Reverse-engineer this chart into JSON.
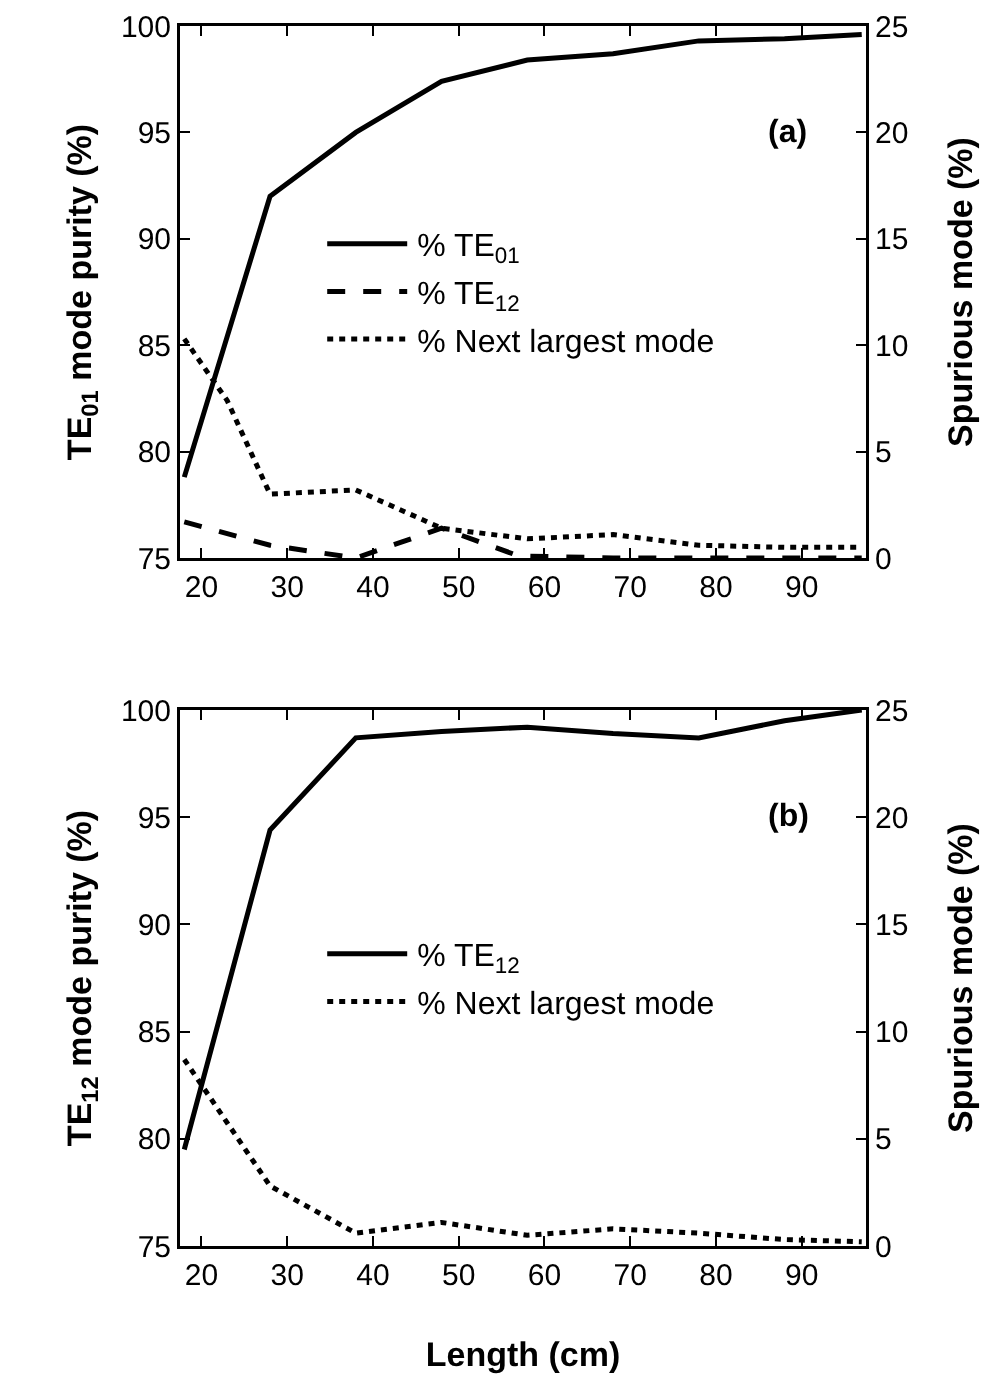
{
  "chart_data": [
    {
      "type": "line",
      "ylabel": "TE$_{01}$ mode purity (%)",
      "y2label": "Spurious mode (%)",
      "annotations": [
        "(a)"
      ],
      "legend": "center",
      "grid": false,
      "xlim": [
        17.5,
        97.5
      ],
      "xticks": [
        20,
        30,
        40,
        50,
        60,
        70,
        80,
        90
      ],
      "ylim": [
        75,
        100
      ],
      "yticks": [
        75,
        80,
        85,
        90,
        95,
        100
      ],
      "y2lim": [
        0,
        25
      ],
      "y2ticks": [
        0,
        5,
        10,
        15,
        20,
        25
      ],
      "series": [
        {
          "name": "% TE$_{01}$",
          "color": "#000000",
          "line_style": "solid",
          "x": [
            18,
            28,
            38,
            48,
            58,
            68,
            78,
            88,
            97
          ],
          "values": [
            78.8,
            92,
            95,
            97.4,
            98.4,
            98.7,
            99.3,
            99.4,
            99.6
          ]
        },
        {
          "name": "% TE$_{12}$",
          "color": "#000000",
          "line_style": "dashed",
          "axis": "y2",
          "x": [
            18,
            28,
            38,
            48,
            57,
            68,
            78,
            88,
            97
          ],
          "values": [
            1.7,
            0.6,
            0,
            1.4,
            0.1,
            0,
            0,
            0,
            0
          ]
        },
        {
          "name": "% Next largest mode",
          "color": "#000000",
          "line_style": "dotted",
          "axis": "y2",
          "x": [
            18,
            23,
            28,
            38,
            48,
            58,
            68,
            78,
            88,
            97
          ],
          "values": [
            10.3,
            7.4,
            3.0,
            3.2,
            1.4,
            0.9,
            1.1,
            0.6,
            0.5,
            0.5
          ]
        }
      ]
    },
    {
      "type": "line",
      "xlabel": "Length (cm)",
      "ylabel": "TE$_{12}$ mode purity (%)",
      "y2label": "Spurious mode (%)",
      "annotations": [
        "(b)"
      ],
      "legend": "center",
      "grid": false,
      "xlim": [
        17.5,
        97.5
      ],
      "xticks": [
        20,
        30,
        40,
        50,
        60,
        70,
        80,
        90
      ],
      "ylim": [
        75,
        100
      ],
      "yticks": [
        75,
        80,
        85,
        90,
        95,
        100
      ],
      "y2lim": [
        0,
        25
      ],
      "y2ticks": [
        0,
        5,
        10,
        15,
        20,
        25
      ],
      "series": [
        {
          "name": "% TE$_{12}$",
          "color": "#000000",
          "line_style": "solid",
          "x": [
            18,
            28,
            38,
            48,
            58,
            68,
            78,
            88,
            97
          ],
          "values": [
            79.5,
            94.4,
            98.7,
            99.0,
            99.2,
            98.9,
            98.7,
            99.5,
            100
          ]
        },
        {
          "name": "% Next largest mode",
          "color": "#000000",
          "line_style": "dotted",
          "axis": "y2",
          "x": [
            18,
            28,
            38,
            48,
            58,
            68,
            78,
            88,
            97
          ],
          "values": [
            8.7,
            2.8,
            0.6,
            1.1,
            0.5,
            0.8,
            0.6,
            0.3,
            0.2
          ]
        }
      ]
    }
  ]
}
